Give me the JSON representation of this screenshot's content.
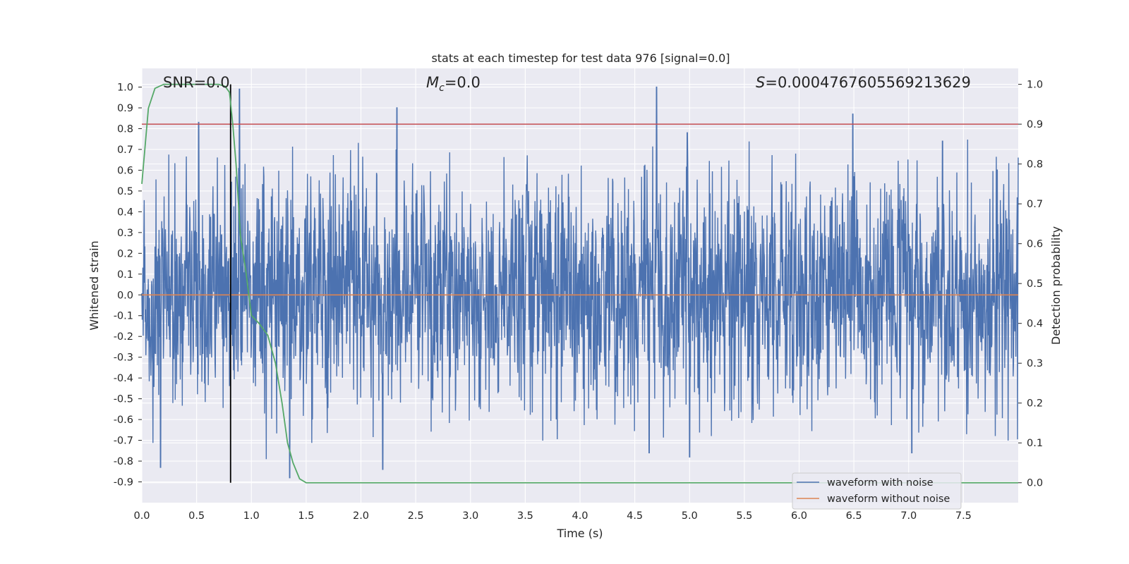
{
  "chart_data": {
    "type": "line",
    "title": "stats at each timestep for test data 976 [signal=0.0]",
    "xlabel": "Time (s)",
    "ylabel_left": "Whitened strain",
    "ylabel_right": "Detection probability",
    "xlim": [
      0.0,
      8.0
    ],
    "ylim_left": [
      -1.0,
      1.09
    ],
    "ylim_right": [
      -0.05,
      1.04
    ],
    "x_ticks": [
      "0.0",
      "0.5",
      "1.0",
      "1.5",
      "2.0",
      "2.5",
      "3.0",
      "3.5",
      "4.0",
      "4.5",
      "5.0",
      "5.5",
      "6.0",
      "6.5",
      "7.0",
      "7.5"
    ],
    "y_left_ticks": [
      "1.0",
      "0.9",
      "0.8",
      "0.7",
      "0.6",
      "0.5",
      "0.4",
      "0.3",
      "0.2",
      "0.1",
      "0.0",
      "-0.1",
      "-0.2",
      "-0.3",
      "-0.4",
      "-0.5",
      "-0.6",
      "-0.7",
      "-0.8",
      "-0.9"
    ],
    "y_right_ticks": [
      "1.0",
      "0.9",
      "0.8",
      "0.7",
      "0.6",
      "0.5",
      "0.4",
      "0.3",
      "0.2",
      "0.1",
      "0.0"
    ],
    "annotations": {
      "snr": "SNR=0.0",
      "mc_symbol": "M",
      "mc_sub": "c",
      "mc_value": "=0.0",
      "s_symbol": "S",
      "s_value": "=0.0004767605569213629"
    },
    "legend": {
      "position": "lower right",
      "entries": [
        "waveform with noise",
        "waveform without noise"
      ]
    },
    "grid": true,
    "series": [
      {
        "name": "waveform with noise",
        "axis": "left",
        "color": "#4c72b0",
        "envelope_peaks": [
          {
            "x": 0.52,
            "y": 0.83
          },
          {
            "x": 0.89,
            "y": 0.99
          },
          {
            "x": 2.33,
            "y": 0.9
          },
          {
            "x": 4.7,
            "y": 1.0
          },
          {
            "x": 4.98,
            "y": 0.78
          },
          {
            "x": 6.49,
            "y": 0.87
          },
          {
            "x": 7.31,
            "y": 0.74
          }
        ],
        "envelope_troughs": [
          {
            "x": 0.17,
            "y": -0.83
          },
          {
            "x": 1.35,
            "y": -0.88
          },
          {
            "x": 2.2,
            "y": -0.84
          },
          {
            "x": 4.63,
            "y": -0.76
          },
          {
            "x": 5.0,
            "y": -0.78
          },
          {
            "x": 7.03,
            "y": -0.76
          }
        ],
        "typical_amplitude": 0.45
      },
      {
        "name": "waveform without noise",
        "axis": "left",
        "color": "#dd8452",
        "x": [
          0.0,
          8.0
        ],
        "y": [
          0.0,
          0.0
        ]
      },
      {
        "name": "detection probability",
        "axis": "right",
        "color": "#55a868",
        "x": [
          0.0,
          0.06,
          0.12,
          0.2,
          0.3,
          0.5,
          0.7,
          0.76,
          0.8,
          0.83,
          0.86,
          0.9,
          0.95,
          1.0,
          1.07,
          1.15,
          1.22,
          1.28,
          1.33,
          1.38,
          1.44,
          1.5,
          8.0
        ],
        "y": [
          0.75,
          0.94,
          0.99,
          1.0,
          1.0,
          1.0,
          1.0,
          0.995,
          0.98,
          0.9,
          0.8,
          0.62,
          0.53,
          0.42,
          0.4,
          0.37,
          0.3,
          0.2,
          0.1,
          0.05,
          0.01,
          0.0,
          0.0
        ]
      }
    ],
    "hlines_right": [
      {
        "y": 0.9,
        "color": "#c44e52"
      }
    ],
    "vlines": [
      {
        "x": 0.81,
        "ymin_right": 0.0,
        "ymax_right": 1.0,
        "color": "#000000"
      }
    ]
  }
}
